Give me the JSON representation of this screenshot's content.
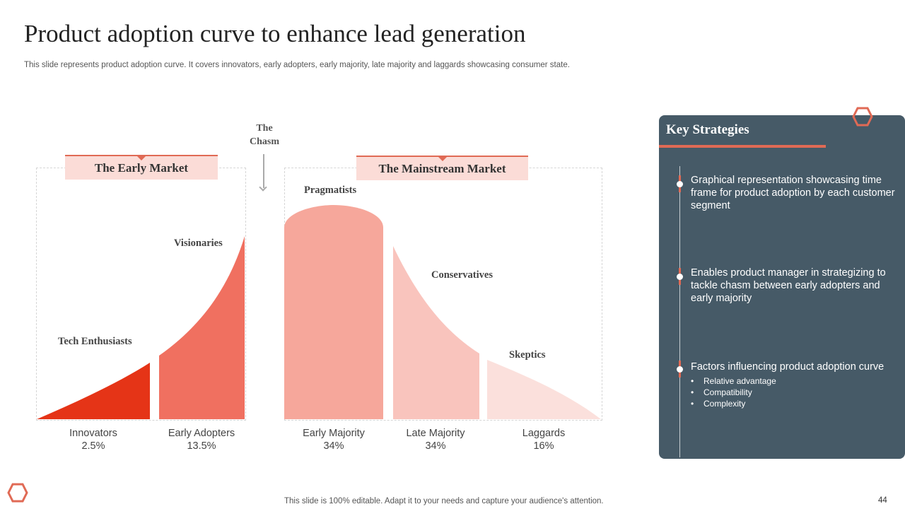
{
  "title": "Product adoption curve to enhance lead generation",
  "subtitle": "This slide represents product adoption curve. It covers innovators, early adopters, early majority, late majority and laggards showcasing consumer state.",
  "chasm": {
    "line1": "The",
    "line2": "Chasm"
  },
  "markets": {
    "early": "The Early Market",
    "mainstream": "The Mainstream Market"
  },
  "segments": {
    "tech_enthusiasts": "Tech Enthusiasts",
    "visionaries": "Visionaries",
    "pragmatists": "Pragmatists",
    "conservatives": "Conservatives",
    "skeptics": "Skeptics"
  },
  "chart_data": {
    "type": "area",
    "title": "Product adoption curve",
    "categories": [
      "Innovators",
      "Early Adopters",
      "Early Majority",
      "Late Majority",
      "Laggards"
    ],
    "values": [
      2.5,
      13.5,
      34,
      34,
      16
    ],
    "labels": [
      "2.5%",
      "13.5%",
      "34%",
      "34%",
      "16%"
    ],
    "colors": [
      "#e53417",
      "#f07060",
      "#f6a79b",
      "#f9c4bd",
      "#fbe0dc"
    ]
  },
  "panel": {
    "title": "Key Strategies",
    "items": [
      "Graphical representation showcasing time frame for product adoption by each customer segment",
      "Enables product manager in strategizing to tackle chasm between early adopters and early majority",
      "Factors influencing product adoption curve"
    ],
    "bullets": [
      "Relative  advantage",
      "Compatibility",
      "Complexity"
    ]
  },
  "footer": "This slide is 100% editable. Adapt it to your needs and capture your audience's attention.",
  "page_number": "44",
  "colors": {
    "accent": "#e06a55",
    "panel_bg": "#465a67",
    "label_bg": "#fbdcd7"
  }
}
